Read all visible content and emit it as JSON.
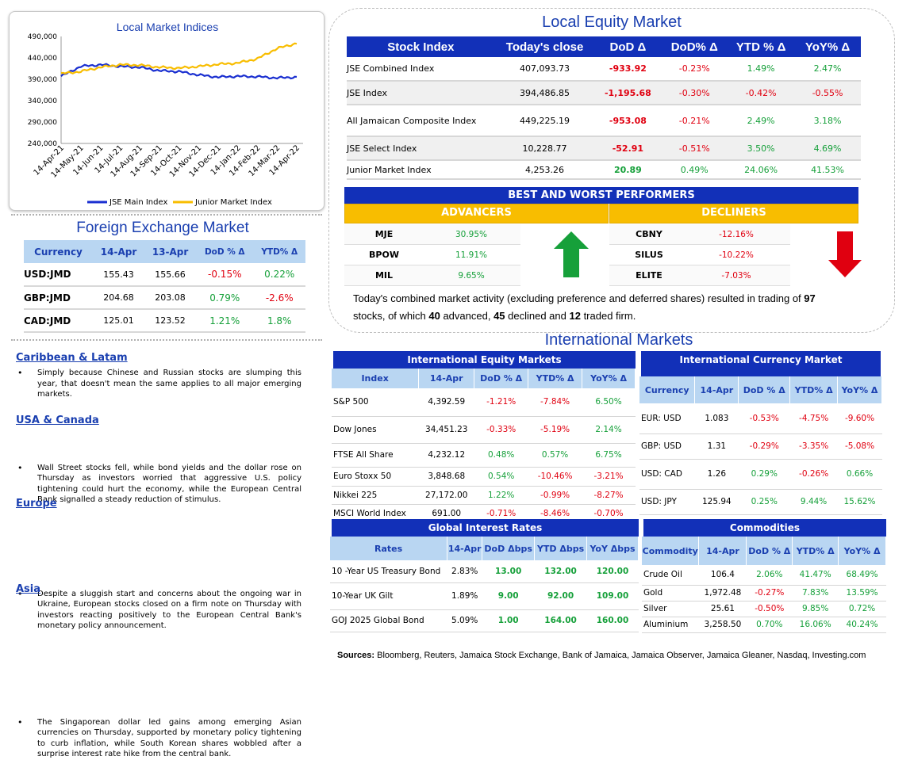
{
  "chart": {
    "title": "Local Market Indices",
    "yticks": [
      "490,000",
      "440,000",
      "390,000",
      "340,000",
      "290,000",
      "240,000"
    ],
    "xticks": [
      "14-Apr-21",
      "14-May-21",
      "14-Jun-21",
      "14-Jul-21",
      "14-Aug-21",
      "14-Sep-21",
      "14-Oct-21",
      "14-Nov-21",
      "14-Dec-21",
      "14-Jan-22",
      "14-Feb-22",
      "14-Mar-22",
      "14-Apr-22"
    ],
    "legend": [
      "JSE Main Index",
      "Junior Market Index"
    ],
    "colors": {
      "main": "#1a2fd0",
      "junior": "#f8bd00"
    }
  },
  "chart_data": {
    "type": "line",
    "title": "Local Market Indices",
    "x": [
      "14-Apr-21",
      "14-May-21",
      "14-Jun-21",
      "14-Jul-21",
      "14-Aug-21",
      "14-Sep-21",
      "14-Oct-21",
      "14-Nov-21",
      "14-Dec-21",
      "14-Jan-22",
      "14-Feb-22",
      "14-Mar-22",
      "14-Apr-22"
    ],
    "ylim": [
      240000,
      490000
    ],
    "series": [
      {
        "name": "JSE Main Index",
        "values": [
          397000,
          420000,
          424000,
          420000,
          418000,
          410000,
          408000,
          400000,
          395000,
          397000,
          396000,
          393000,
          395000
        ]
      },
      {
        "name": "Junior Market Index",
        "values": [
          403000,
          408000,
          418000,
          424000,
          423000,
          418000,
          416000,
          420000,
          425000,
          428000,
          438000,
          462000,
          474000
        ]
      }
    ]
  },
  "fx": {
    "title": "Foreign Exchange Market",
    "headers": [
      "Currency",
      "14-Apr",
      "13-Apr",
      "DoD % Δ",
      "YTD% Δ"
    ],
    "rows": [
      [
        "USD:JMD",
        "155.43",
        "155.66",
        "-0.15%",
        "0.22%"
      ],
      [
        "GBP:JMD",
        "204.68",
        "203.08",
        "0.79%",
        "-2.6%"
      ],
      [
        "CAD:JMD",
        "125.01",
        "123.52",
        "1.21%",
        "1.8%"
      ]
    ]
  },
  "news": [
    {
      "head": "Caribbean & Latam",
      "text": "Simply because Chinese and Russian stocks are slumping this year, that doesn't mean the same applies to all major emerging markets."
    },
    {
      "head": "USA & Canada",
      "text": "Wall Street stocks fell, while bond yields and the dollar rose on Thursday as investors worried that aggressive U.S. policy tightening could hurt the economy, while the European Central Bank signalled a steady reduction of stimulus."
    },
    {
      "head": "Europe",
      "text": "Despite a sluggish start and concerns about the ongoing war in Ukraine, European stocks closed on a firm note on Thursday with investors reacting positively to the European Central Bank's monetary policy announcement."
    },
    {
      "head": "Asia",
      "text": "The Singaporean dollar led gains among emerging Asian currencies on Thursday, supported by monetary policy tightening to curb inflation, while South Korean shares wobbled after a surprise interest rate hike from the central bank."
    }
  ],
  "equity": {
    "title": "Local Equity Market",
    "headers": [
      "Stock Index",
      "Today's close",
      "DoD  Δ",
      "DoD% Δ",
      "YTD % Δ",
      "YoY% Δ"
    ],
    "rows": [
      [
        "JSE Combined Index",
        "407,093.73",
        "-933.92",
        "-0.23%",
        "1.49%",
        "2.47%"
      ],
      [
        "JSE Index",
        "394,486.85",
        "-1,195.68",
        "-0.30%",
        "-0.42%",
        "-0.55%"
      ],
      [
        "All Jamaican Composite Index",
        "449,225.19",
        "-953.08",
        "-0.21%",
        "2.49%",
        "3.18%"
      ],
      [
        "JSE Select Index",
        "10,228.77",
        "-52.91",
        "-0.51%",
        "3.50%",
        "4.69%"
      ],
      [
        "Junior Market Index",
        "4,253.26",
        "20.89",
        "0.49%",
        "24.06%",
        "41.53%"
      ]
    ]
  },
  "performers": {
    "title": "BEST AND WORST PERFORMERS",
    "adv_label": "ADVANCERS",
    "dec_label": "DECLINERS",
    "advancers": [
      [
        "MJE",
        "30.95%"
      ],
      [
        "BPOW",
        "11.91%"
      ],
      [
        "MIL",
        "9.65%"
      ]
    ],
    "decliners": [
      [
        "CBNY",
        "-12.16%"
      ],
      [
        "SILUS",
        "-10.22%"
      ],
      [
        "ELITE",
        "-7.03%"
      ]
    ]
  },
  "summary": {
    "t1": "Today's combined market activity (excluding preference and deferred shares) resulted in trading of ",
    "n1": "97",
    "t2": "stocks, of which ",
    "n2": "40",
    "t3": " advanced, ",
    "n3": "45",
    "t4": " declined and ",
    "n4": "12",
    "t5": " traded firm."
  },
  "intl": {
    "title": "International Markets"
  },
  "ieq": {
    "title": "International Equity Markets",
    "headers": [
      "Index",
      "14-Apr",
      "DoD % Δ",
      "YTD% Δ",
      "YoY% Δ"
    ],
    "rows": [
      [
        "S&P 500",
        "4,392.59",
        "-1.21%",
        "-7.84%",
        "6.50%"
      ],
      [
        "Dow Jones",
        "34,451.23",
        "-0.33%",
        "-5.19%",
        "2.14%"
      ],
      [
        "FTSE All Share",
        "4,232.12",
        "0.48%",
        "0.57%",
        "6.75%"
      ],
      [
        "Euro Stoxx 50",
        "3,848.68",
        "0.54%",
        "-10.46%",
        "-3.21%"
      ],
      [
        "Nikkei 225",
        "27,172.00",
        "1.22%",
        "-0.99%",
        "-8.27%"
      ],
      [
        "MSCI World Index",
        "691.00",
        "-0.71%",
        "-8.46%",
        "-0.70%"
      ]
    ]
  },
  "icur": {
    "title": "International Currency Market",
    "headers": [
      "Currency",
      "14-Apr",
      "DoD % Δ",
      "YTD% Δ",
      "YoY% Δ"
    ],
    "rows": [
      [
        "EUR: USD",
        "1.083",
        "-0.53%",
        "-4.75%",
        "-9.60%"
      ],
      [
        "GBP: USD",
        "1.31",
        "-0.29%",
        "-3.35%",
        "-5.08%"
      ],
      [
        "USD: CAD",
        "1.26",
        "0.29%",
        "-0.26%",
        "0.66%"
      ],
      [
        "USD: JPY",
        "125.94",
        "0.25%",
        "9.44%",
        "15.62%"
      ]
    ]
  },
  "rates": {
    "title": "Global Interest Rates",
    "headers": [
      "Rates",
      "14-Apr",
      "DoD Δbps",
      "YTD Δbps",
      "YoY Δbps"
    ],
    "rows": [
      [
        "10 -Year US Treasury Bond",
        "2.83%",
        "13.00",
        "132.00",
        "120.00"
      ],
      [
        "10-Year UK Gilt",
        "1.89%",
        "9.00",
        "92.00",
        "109.00"
      ],
      [
        "GOJ 2025 Global Bond",
        "5.09%",
        "1.00",
        "164.00",
        "160.00"
      ]
    ]
  },
  "comm": {
    "title": "Commodities",
    "headers": [
      "Commodity",
      "14-Apr",
      "DoD % Δ",
      "YTD% Δ",
      "YoY% Δ"
    ],
    "rows": [
      [
        "Crude Oil",
        "106.4",
        "2.06%",
        "41.47%",
        "68.49%"
      ],
      [
        "Gold",
        "1,972.48",
        "-0.27%",
        "7.83%",
        "13.59%"
      ],
      [
        "Silver",
        "25.61",
        "-0.50%",
        "9.85%",
        "0.72%"
      ],
      [
        "Aluminium",
        "3,258.50",
        "0.70%",
        "16.06%",
        "40.24%"
      ]
    ]
  },
  "sources": {
    "label": "Sources:",
    "text": " Bloomberg, Reuters, Jamaica Stock Exchange, Bank of Jamaica, Jamaica Observer, Jamaica Gleaner, Nasdaq, Investing.com"
  }
}
